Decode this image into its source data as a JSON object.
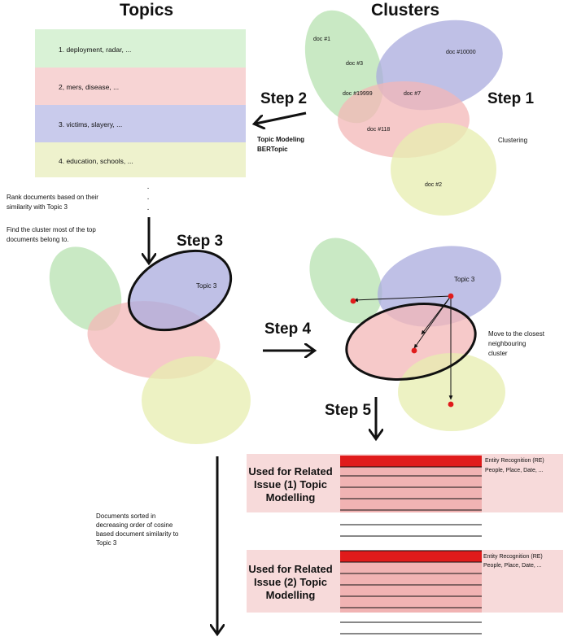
{
  "headers": {
    "topics": "Topics",
    "clusters": "Clusters"
  },
  "topics": [
    {
      "label": "1. deployment, radar, ...",
      "color": "#d9f2d6"
    },
    {
      "label": "2, mers, disease, ...",
      "color": "#f7d4d4"
    },
    {
      "label": "3. victims, slayery, ...",
      "color": "#c9cbec"
    },
    {
      "label": "4. education, schools, ...",
      "color": "#eef2cd"
    }
  ],
  "topic_list_ellipsis": [
    "·",
    "·",
    "·"
  ],
  "clusters_docs": [
    "doc #1",
    "doc #3",
    "doc #10000",
    "doc #19999",
    "doc #7",
    "doc #118",
    "doc #2"
  ],
  "cluster_colors": {
    "green": "#b7e2b0",
    "blue": "#a9abdd",
    "red": "#f3b7b7",
    "yellow": "#e7eeaf"
  },
  "steps": {
    "step1": "Step 1",
    "step2": "Step 2",
    "step3": "Step 3",
    "step4": "Step 4",
    "step5": "Step 5"
  },
  "step1_caption": "Clustering",
  "step2_caption": [
    "Topic Modeling",
    "BERTopic"
  ],
  "rank_text": [
    "Rank documents based on their",
    "similarity with Topic 3"
  ],
  "find_text": [
    "Find the cluster most of the top",
    "documents belong to."
  ],
  "topic3_label": "Topic 3",
  "move_text": [
    "Move to the closest",
    "neighbouring",
    "cluster"
  ],
  "sorted_text": [
    "Documents sorted in",
    "decreasing order of cosine",
    "based document similarity to",
    "Topic 3"
  ],
  "issue_blocks": [
    {
      "label": [
        "Used for Related",
        "Issue (1) Topic",
        "Modelling"
      ],
      "er": [
        "Entity Recognition (RE)",
        "People, Place, Date, ..."
      ]
    },
    {
      "label": [
        "Used for Related",
        "Issue (2) Topic",
        "Modelling"
      ],
      "er": [
        "Entity Recognition (RE)",
        "People, Place, Date, ..."
      ]
    }
  ],
  "accent_red": "#e01b1b"
}
